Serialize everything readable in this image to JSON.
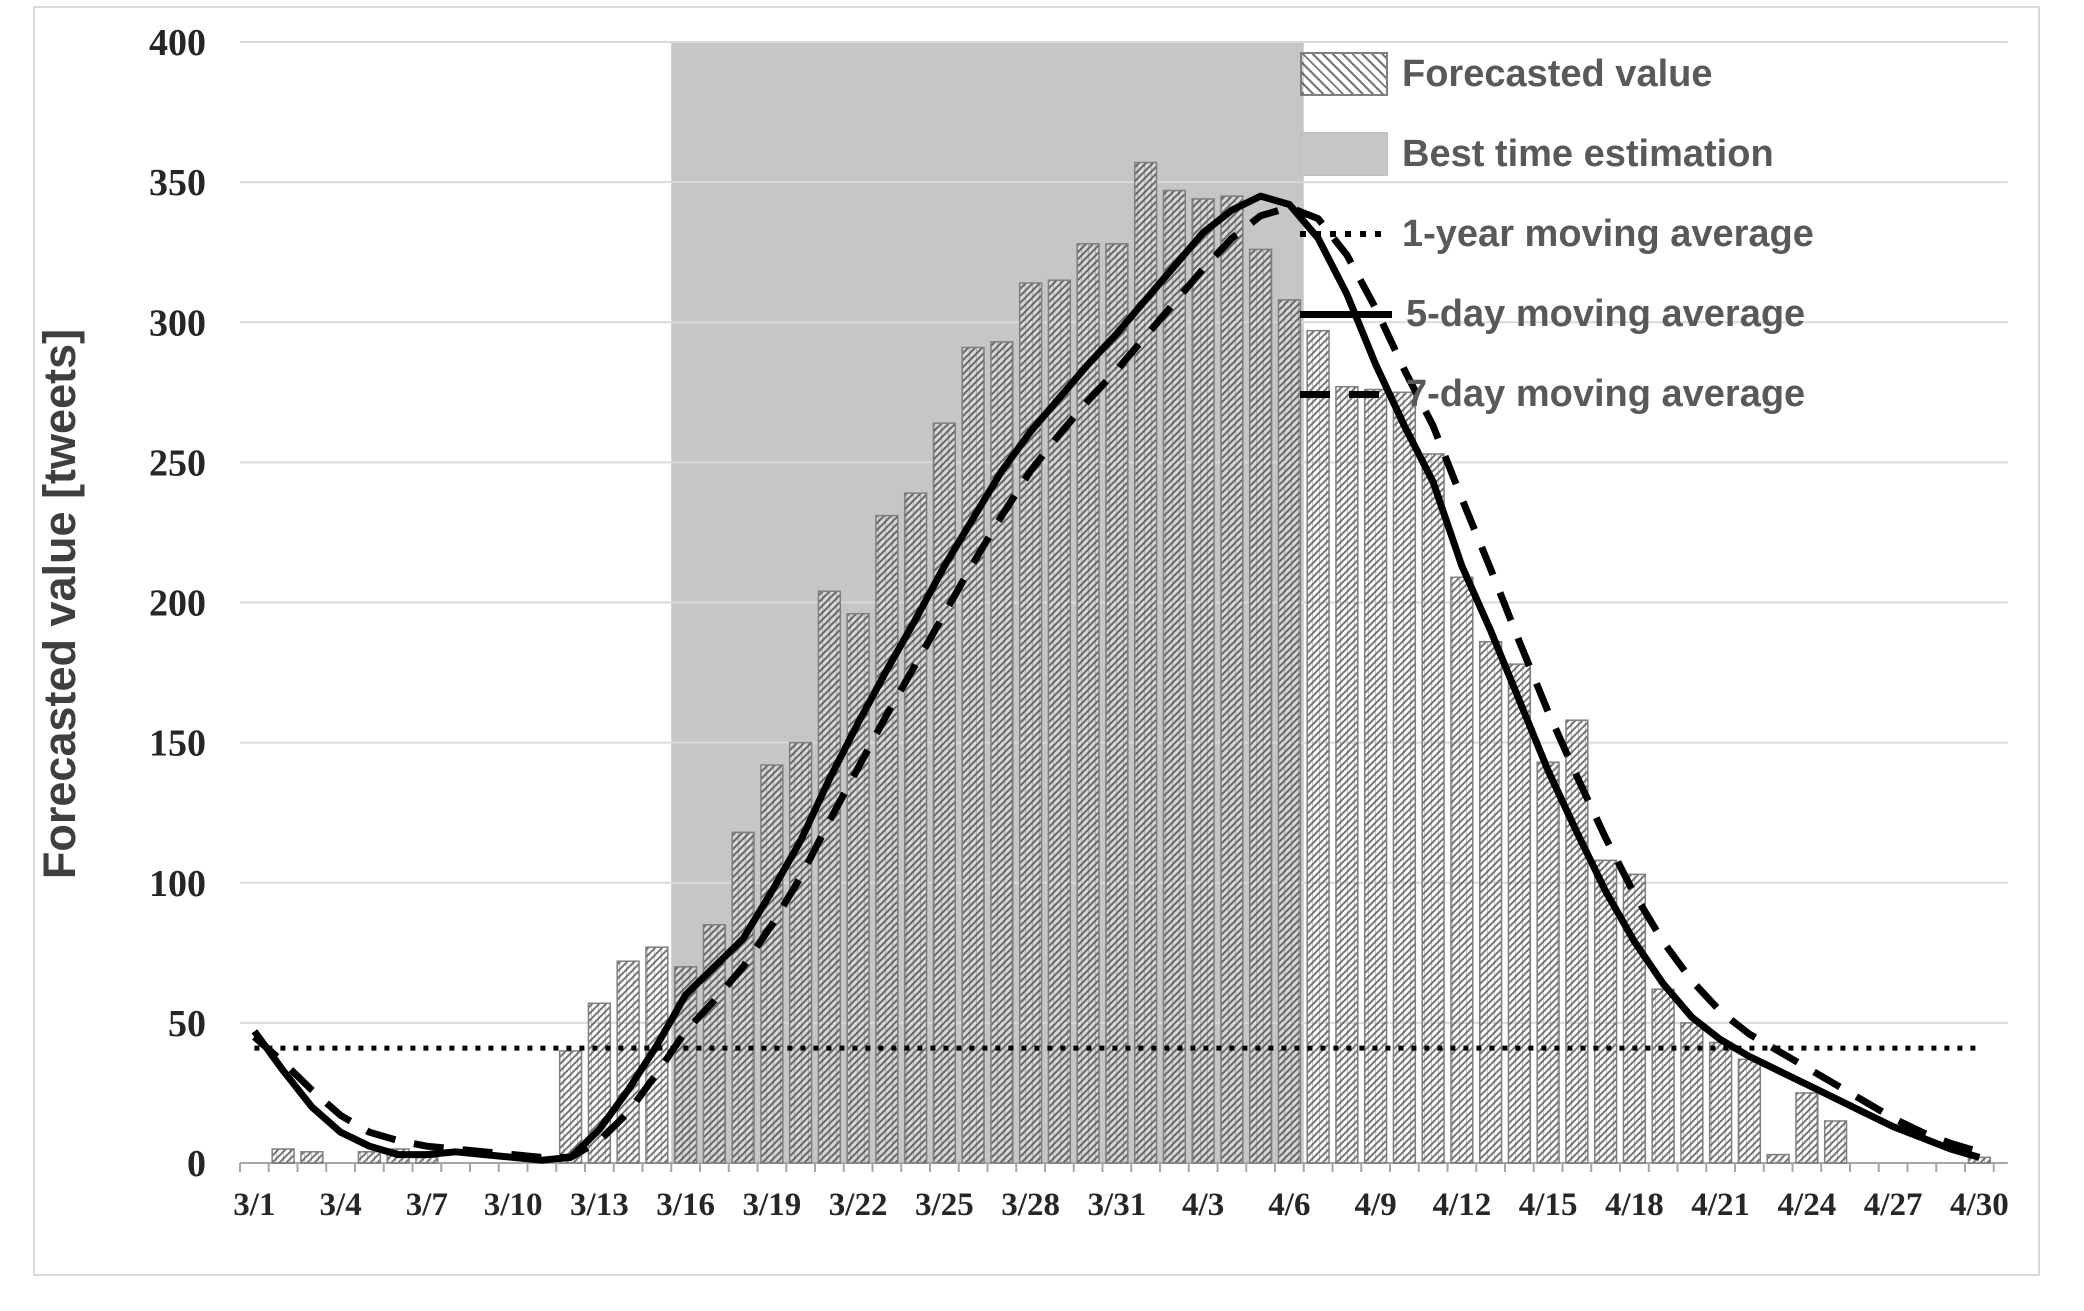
{
  "colors": {
    "background": "#ffffff",
    "figure_border": "#d9d9d9",
    "band": "#c6c6c6",
    "grid": "#d9d9d9",
    "axis_line": "#a6a6a6",
    "bar_border": "#7f7f7f",
    "hatch_line": "#2d2d2d",
    "line": "#000000",
    "axis_text": "#262626",
    "legend_text": "#595959"
  },
  "chart_data": {
    "type": "combo",
    "title": "",
    "xlabel": "",
    "ylabel": "Forecasted value [tweets]",
    "ylim": [
      0,
      400
    ],
    "ytick_interval": 50,
    "yticks": [
      0,
      50,
      100,
      150,
      200,
      250,
      300,
      350,
      400
    ],
    "grid": true,
    "legend_position": "top-right",
    "x_tick_label_interval": 3,
    "xticks_labeled": [
      "3/1",
      "3/4",
      "3/7",
      "3/10",
      "3/13",
      "3/16",
      "3/19",
      "3/22",
      "3/25",
      "3/28",
      "3/31",
      "4/3",
      "4/6",
      "4/9",
      "4/12",
      "4/15",
      "4/18",
      "4/21",
      "4/24",
      "4/27",
      "4/30"
    ],
    "categories": [
      "3/1",
      "3/2",
      "3/3",
      "3/4",
      "3/5",
      "3/6",
      "3/7",
      "3/8",
      "3/9",
      "3/10",
      "3/11",
      "3/12",
      "3/13",
      "3/14",
      "3/15",
      "3/16",
      "3/17",
      "3/18",
      "3/19",
      "3/20",
      "3/21",
      "3/22",
      "3/23",
      "3/24",
      "3/25",
      "3/26",
      "3/27",
      "3/28",
      "3/29",
      "3/30",
      "3/31",
      "4/1",
      "4/2",
      "4/3",
      "4/4",
      "4/5",
      "4/6",
      "4/7",
      "4/8",
      "4/9",
      "4/10",
      "4/11",
      "4/12",
      "4/13",
      "4/14",
      "4/15",
      "4/16",
      "4/17",
      "4/18",
      "4/19",
      "4/20",
      "4/21",
      "4/22",
      "4/23",
      "4/24",
      "4/25",
      "4/26",
      "4/27",
      "4/28",
      "4/29",
      "4/30"
    ],
    "series": [
      {
        "name": "Forecasted value",
        "type": "bar",
        "values": [
          0,
          5,
          4,
          0,
          4,
          5,
          2,
          0,
          0,
          0,
          0,
          40,
          57,
          72,
          77,
          70,
          85,
          118,
          142,
          150,
          204,
          196,
          231,
          239,
          264,
          291,
          293,
          314,
          315,
          328,
          328,
          357,
          347,
          344,
          345,
          326,
          308,
          297,
          277,
          276,
          275,
          253,
          209,
          186,
          178,
          143,
          158,
          108,
          103,
          62,
          50,
          43,
          37,
          3,
          25,
          15,
          0,
          0,
          0,
          0,
          2
        ]
      },
      {
        "name": "Best time estimation",
        "type": "band",
        "from": "3/16",
        "to": "4/6"
      },
      {
        "name": "1-year moving average",
        "type": "line",
        "style": "dotted",
        "value": 41
      },
      {
        "name": "5-day moving average",
        "type": "line",
        "style": "solid",
        "values": [
          47,
          33,
          20,
          11,
          6,
          3,
          3,
          4,
          3,
          2,
          1,
          2,
          12,
          26,
          42,
          60,
          70,
          80,
          97,
          115,
          137,
          157,
          176,
          194,
          213,
          230,
          247,
          261,
          273,
          285,
          296,
          308,
          320,
          332,
          340,
          345,
          342,
          330,
          310,
          285,
          263,
          243,
          213,
          190,
          165,
          140,
          118,
          97,
          79,
          64,
          52,
          44,
          38,
          33,
          28,
          23,
          18,
          13,
          9,
          5,
          2
        ]
      },
      {
        "name": "7-day moving average",
        "type": "line",
        "style": "dashed",
        "values": [
          45,
          36,
          26,
          17,
          11,
          8,
          6,
          5,
          4,
          3,
          2,
          2,
          8,
          18,
          32,
          47,
          58,
          70,
          85,
          102,
          122,
          141,
          160,
          178,
          196,
          214,
          231,
          247,
          260,
          272,
          283,
          295,
          307,
          319,
          330,
          338,
          341,
          337,
          324,
          305,
          283,
          263,
          237,
          212,
          186,
          161,
          138,
          116,
          96,
          79,
          65,
          54,
          46,
          40,
          34,
          28,
          22,
          16,
          11,
          7,
          4
        ]
      }
    ]
  }
}
